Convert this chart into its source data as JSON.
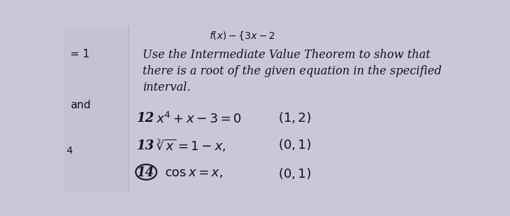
{
  "background_color": "#c8c8d8",
  "page_color": "#d0d0e0",
  "left_bg": "#c0c0d0",
  "text_color": "#1a1a2e",
  "dark_text": "#111122",
  "line_color": "#aaaacc",
  "top_formula": "f(x) = {3x − 2",
  "left_label_1": "= 1",
  "left_label_2": "and",
  "instruction_line1": "Use the Intermediate Value Theorem to show that",
  "instruction_line2": "there is a root of the given equation in the specified",
  "instruction_line3": "interval.",
  "prob12_num": "12",
  "prob12_eq": "x^4+x-3=0",
  "prob12_int": "(1, 2)",
  "prob13_num": "13",
  "prob13_eq": "\\sqrt[3]{x}=1-x,",
  "prob13_int": "(0, 1)",
  "prob14_num": "14",
  "prob14_eq": "\\cos x=x,",
  "prob14_int": "(0, 1)",
  "figsize": [
    7.19,
    3.05
  ],
  "dpi": 100
}
